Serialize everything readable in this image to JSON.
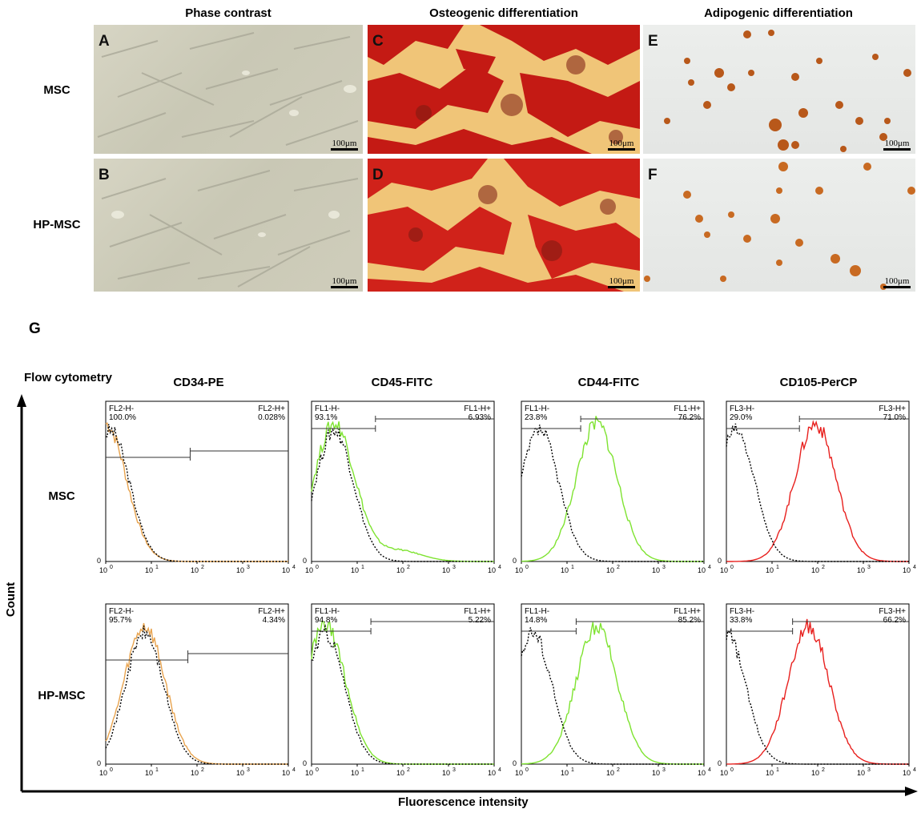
{
  "figure": {
    "column_titles": [
      "Phase contrast",
      "Osteogenic differentiation",
      "Adipogenic differentiation"
    ],
    "row_labels": [
      "MSC",
      "HP-MSC"
    ],
    "panel_letters": [
      "A",
      "B",
      "C",
      "D",
      "E",
      "F"
    ],
    "scale_bar": "100μm",
    "g_label": "G",
    "flow_label": "Flow cytometry",
    "y_axis_title": "Count",
    "x_axis_title": "Fluorescence intensity",
    "marker_titles": [
      "CD34-PE",
      "CD45-FITC",
      "CD44-FITC",
      "CD105-PerCP"
    ],
    "tick_labels": [
      "10",
      "0",
      "1",
      "2",
      "3",
      "4"
    ],
    "zero_label": "0",
    "colors": {
      "pe": "#e8a34e",
      "fitc": "#7ee330",
      "percp": "#e8201e",
      "control": "#000000"
    }
  },
  "chart_data": [
    {
      "type": "area",
      "marker": "CD34-PE",
      "cell": "MSC",
      "gate_neg_label": "FL2-H-",
      "gate_neg_pct": "100.0%",
      "gate_pos_label": "FL2-H+",
      "gate_pos_pct": "0.028%",
      "color": "#e8a34e",
      "x_range_log10": [
        0,
        4
      ],
      "stain_peak_log10": 0.0,
      "control_peak_log10": 0.1,
      "gate_split_log10": 1.85
    },
    {
      "type": "area",
      "marker": "CD45-FITC",
      "cell": "MSC",
      "gate_neg_label": "FL1-H-",
      "gate_neg_pct": "93.1%",
      "gate_pos_label": "FL1-H+",
      "gate_pos_pct": "6.93%",
      "color": "#7ee330",
      "x_range_log10": [
        0,
        4
      ],
      "stain_peak_log10": 0.5,
      "control_peak_log10": 0.5,
      "gate_split_log10": 1.4
    },
    {
      "type": "area",
      "marker": "CD44-FITC",
      "cell": "MSC",
      "gate_neg_label": "FL1-H-",
      "gate_neg_pct": "23.8%",
      "gate_pos_label": "FL1-H+",
      "gate_pos_pct": "76.2%",
      "color": "#7ee330",
      "x_range_log10": [
        0,
        4
      ],
      "stain_peak_log10": 1.65,
      "control_peak_log10": 0.4,
      "gate_split_log10": 1.3
    },
    {
      "type": "area",
      "marker": "CD105-PerCP",
      "cell": "MSC",
      "gate_neg_label": "FL3-H-",
      "gate_neg_pct": "29.0%",
      "gate_pos_label": "FL3-H+",
      "gate_pos_pct": "71.0%",
      "color": "#e8201e",
      "x_range_log10": [
        0,
        4
      ],
      "stain_peak_log10": 1.95,
      "control_peak_log10": 0.2,
      "gate_split_log10": 1.6
    },
    {
      "type": "area",
      "marker": "CD34-PE",
      "cell": "HP-MSC",
      "gate_neg_label": "FL2-H-",
      "gate_neg_pct": "95.7%",
      "gate_pos_label": "FL2-H+",
      "gate_pos_pct": "4.34%",
      "color": "#e8a34e",
      "x_range_log10": [
        0,
        4
      ],
      "stain_peak_log10": 0.85,
      "control_peak_log10": 0.85,
      "gate_split_log10": 1.8
    },
    {
      "type": "area",
      "marker": "CD45-FITC",
      "cell": "HP-MSC",
      "gate_neg_label": "FL1-H-",
      "gate_neg_pct": "94.8%",
      "gate_pos_label": "FL1-H+",
      "gate_pos_pct": "5.22%",
      "color": "#7ee330",
      "x_range_log10": [
        0,
        4
      ],
      "stain_peak_log10": 0.3,
      "control_peak_log10": 0.3,
      "gate_split_log10": 1.3
    },
    {
      "type": "area",
      "marker": "CD44-FITC",
      "cell": "HP-MSC",
      "gate_neg_label": "FL1-H-",
      "gate_neg_pct": "14.8%",
      "gate_pos_label": "FL1-H+",
      "gate_pos_pct": "85.2%",
      "color": "#7ee330",
      "x_range_log10": [
        0,
        4
      ],
      "stain_peak_log10": 1.65,
      "control_peak_log10": 0.25,
      "gate_split_log10": 1.2
    },
    {
      "type": "area",
      "marker": "CD105-PerCP",
      "cell": "HP-MSC",
      "gate_neg_label": "FL3-H-",
      "gate_neg_pct": "33.8%",
      "gate_pos_label": "FL3-H+",
      "gate_pos_pct": "66.2%",
      "color": "#e8201e",
      "x_range_log10": [
        0,
        4
      ],
      "stain_peak_log10": 1.8,
      "control_peak_log10": 0.0,
      "gate_split_log10": 1.45
    }
  ]
}
